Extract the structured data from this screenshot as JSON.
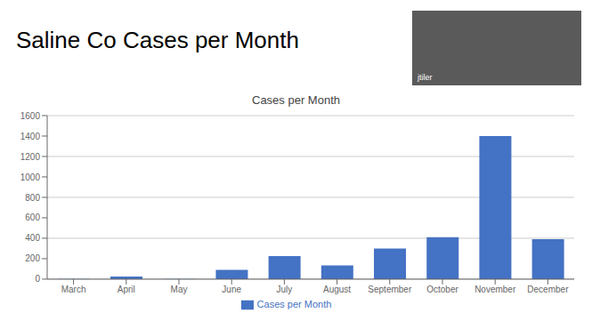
{
  "chart_data": {
    "type": "bar",
    "title": "Saline Co Cases per Month",
    "subtitle": "Cases per Month",
    "annotations": [
      "jtiler"
    ],
    "categories": [
      "March",
      "April",
      "May",
      "June",
      "July",
      "August",
      "September",
      "October",
      "November",
      "December"
    ],
    "series": [
      {
        "name": "Cases per Month",
        "color": "#4472C4",
        "values": [
          2,
          25,
          1,
          90,
          225,
          135,
          300,
          410,
          1400,
          390
        ]
      }
    ],
    "ylim": [
      0,
      1600
    ],
    "yticks": [
      0,
      200,
      400,
      600,
      800,
      1000,
      1200,
      1400,
      1600
    ],
    "grid": true,
    "legend": "bottom"
  }
}
